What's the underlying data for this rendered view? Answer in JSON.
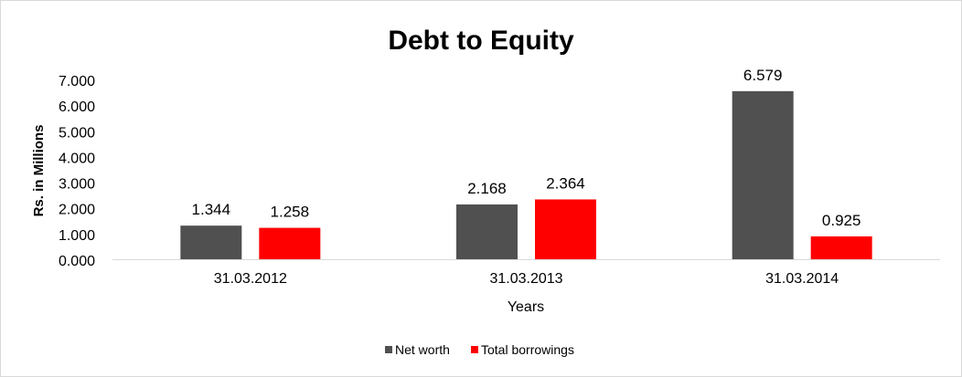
{
  "chart_data": {
    "type": "bar",
    "title": "Debt to Equity",
    "xlabel": "Years",
    "ylabel": "Rs. in Millions",
    "categories": [
      "31.03.2012",
      "31.03.2013",
      "31.03.2014"
    ],
    "series": [
      {
        "name": "Net worth",
        "values": [
          1.344,
          2.168,
          6.579
        ],
        "labels": [
          "1.344",
          "2.168",
          "6.579"
        ],
        "color": "#505050"
      },
      {
        "name": "Total borrowings",
        "values": [
          1.258,
          2.364,
          0.925
        ],
        "labels": [
          "1.258",
          "2.364",
          "0.925"
        ],
        "color": "#ff0000"
      }
    ],
    "ylim": [
      0,
      7
    ],
    "y_ticks": [
      "0.000",
      "1.000",
      "2.000",
      "3.000",
      "4.000",
      "5.000",
      "6.000",
      "7.000"
    ],
    "grid": false,
    "legend": "bottom"
  }
}
